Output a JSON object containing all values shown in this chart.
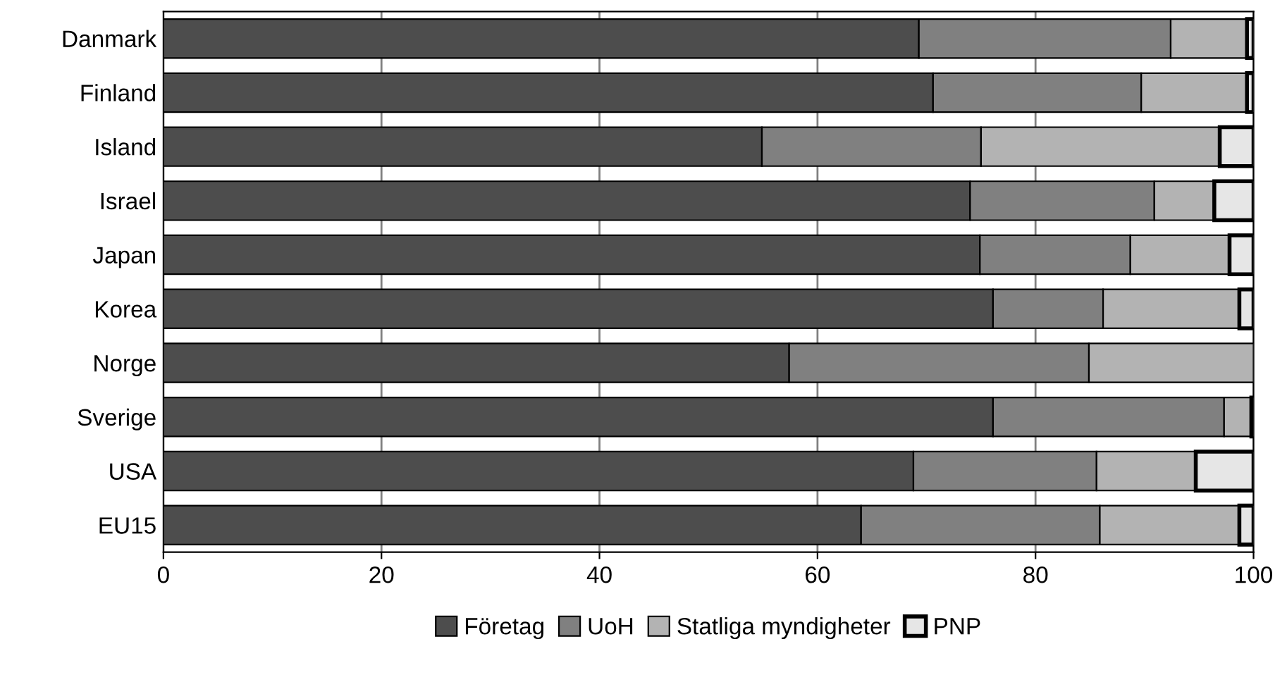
{
  "chart_data": {
    "type": "bar",
    "orientation": "horizontal",
    "stacked": true,
    "categories": [
      "Danmark",
      "Finland",
      "Island",
      "Israel",
      "Japan",
      "Korea",
      "Norge",
      "Sverige",
      "USA",
      "EU15"
    ],
    "series": [
      {
        "name": "Företag",
        "color": "#4d4d4d",
        "values": [
          69.3,
          70.6,
          54.9,
          74.0,
          74.9,
          76.1,
          57.4,
          76.1,
          68.8,
          64.0
        ]
      },
      {
        "name": "UoH",
        "color": "#808080",
        "values": [
          23.1,
          19.1,
          20.1,
          16.9,
          13.8,
          10.1,
          27.5,
          21.2,
          16.8,
          21.9
        ]
      },
      {
        "name": "Statliga myndigheter",
        "color": "#b3b3b3",
        "values": [
          7.0,
          9.7,
          21.9,
          5.5,
          9.1,
          12.5,
          15.1,
          2.5,
          9.1,
          12.8
        ]
      },
      {
        "name": "PNP",
        "color": "#e6e6e6",
        "values": [
          0.6,
          0.6,
          3.1,
          3.6,
          2.2,
          1.3,
          null,
          0.2,
          5.3,
          1.3
        ]
      }
    ],
    "xlim": [
      0,
      100
    ],
    "xticks": [
      0,
      20,
      40,
      60,
      80,
      100
    ],
    "grid": "x",
    "legend": "bottom"
  }
}
